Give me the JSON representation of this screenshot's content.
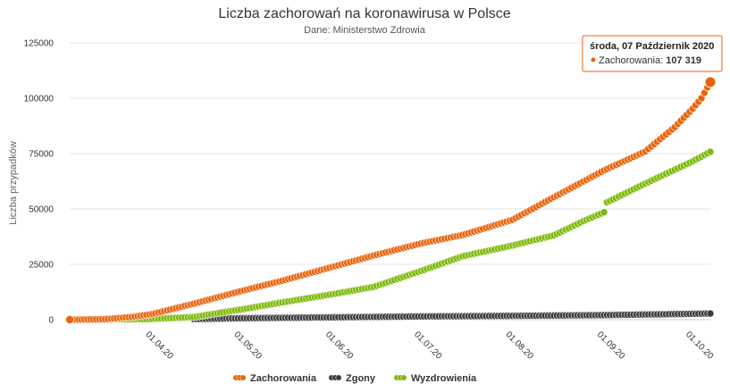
{
  "chart_data": {
    "type": "scatter",
    "title": "Liczba zachorowań na koronawirusa w Polsce",
    "subtitle": "Dane: Ministerstwo Zdrowia",
    "ylabel": "Liczba przypadków",
    "xlabel": "",
    "ylim": [
      0,
      125000
    ],
    "yticks": [
      0,
      25000,
      50000,
      75000,
      100000,
      125000
    ],
    "yticklabels": [
      "0",
      "25000",
      "50000",
      "75000",
      "100000",
      "125000"
    ],
    "xlim": [
      "2020-03-04",
      "2020-10-07"
    ],
    "xticks": [
      "2020-04-01",
      "2020-05-01",
      "2020-06-01",
      "2020-07-01",
      "2020-08-01",
      "2020-09-01",
      "2020-10-01"
    ],
    "xticklabels": [
      "01.04.20",
      "01.05.20",
      "01.06.20",
      "01.07.20",
      "01.08.20",
      "01.09.20",
      "01.10.20"
    ],
    "grid": true,
    "legend_position": "bottom",
    "series": [
      {
        "name": "Zachorowania",
        "color": "#e8640c",
        "points": [
          [
            "2020-03-04",
            0
          ],
          [
            "2020-03-15",
            150
          ],
          [
            "2020-03-25",
            1200
          ],
          [
            "2020-04-01",
            2550
          ],
          [
            "2020-04-15",
            7200
          ],
          [
            "2020-05-01",
            12900
          ],
          [
            "2020-05-15",
            17600
          ],
          [
            "2020-06-01",
            23800
          ],
          [
            "2020-06-15",
            29000
          ],
          [
            "2020-07-01",
            34400
          ],
          [
            "2020-07-15",
            38200
          ],
          [
            "2020-08-01",
            45100
          ],
          [
            "2020-08-15",
            55300
          ],
          [
            "2020-09-01",
            67400
          ],
          [
            "2020-09-15",
            76000
          ],
          [
            "2020-09-25",
            87000
          ],
          [
            "2020-10-01",
            95300
          ],
          [
            "2020-10-04",
            100000
          ],
          [
            "2020-10-07",
            107319
          ]
        ]
      },
      {
        "name": "Zgony",
        "color": "#3d3d3d",
        "points": [
          [
            "2020-04-15",
            260
          ],
          [
            "2020-05-01",
            640
          ],
          [
            "2020-06-01",
            1060
          ],
          [
            "2020-07-01",
            1460
          ],
          [
            "2020-08-01",
            1730
          ],
          [
            "2020-09-01",
            2070
          ],
          [
            "2020-10-01",
            2630
          ],
          [
            "2020-10-07",
            2792
          ]
        ]
      },
      {
        "name": "Wyzdrowienia",
        "color": "#7cb908",
        "points": [
          [
            "2020-03-04",
            0
          ],
          [
            "2020-03-30",
            200
          ],
          [
            "2020-04-15",
            1200
          ],
          [
            "2020-05-01",
            4600
          ],
          [
            "2020-05-15",
            7800
          ],
          [
            "2020-06-01",
            11500
          ],
          [
            "2020-06-15",
            14800
          ],
          [
            "2020-07-01",
            22000
          ],
          [
            "2020-07-15",
            28600
          ],
          [
            "2020-08-01",
            33500
          ],
          [
            "2020-08-15",
            38100
          ],
          [
            "2020-08-25",
            44500
          ],
          [
            "2020-09-01",
            48500
          ],
          [
            "2020-09-02",
            53000
          ],
          [
            "2020-09-15",
            61500
          ],
          [
            "2020-10-01",
            71500
          ],
          [
            "2020-10-07",
            75800
          ]
        ]
      }
    ]
  },
  "tooltip": {
    "date": "środa, 07 Październik 2020",
    "series_label": "Zachorowania: ",
    "value": "107 319",
    "color": "#e8640c"
  }
}
